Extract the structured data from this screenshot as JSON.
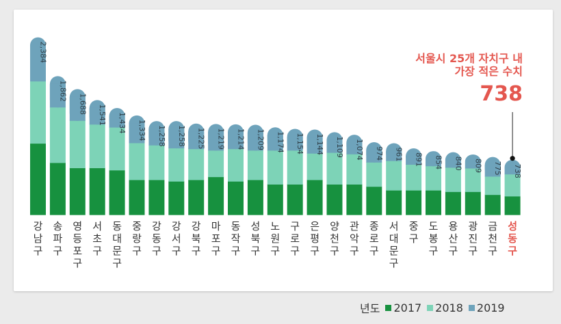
{
  "colors": {
    "y2017": "#17913f",
    "y2018": "#7dd3b7",
    "y2019": "#6ea3bb",
    "highlight": "#e4574f"
  },
  "annotation": {
    "line1": "서울시 25개 자치구 내",
    "line2": "가장 적은 수치",
    "value": "738"
  },
  "legend": {
    "title": "년도",
    "items": [
      {
        "label": "2017",
        "color": "#17913f"
      },
      {
        "label": "2018",
        "color": "#7dd3b7"
      },
      {
        "label": "2019",
        "color": "#6ea3bb"
      }
    ]
  },
  "chart_data": {
    "type": "bar",
    "stacked": true,
    "categories": [
      "강남구",
      "송파구",
      "영등포구",
      "서초구",
      "동대문구",
      "중랑구",
      "강동구",
      "강서구",
      "강북구",
      "마포구",
      "동작구",
      "성북구",
      "노원구",
      "구로구",
      "은평구",
      "양천구",
      "관악구",
      "종로구",
      "서대문구",
      "중구",
      "도봉구",
      "용산구",
      "광진구",
      "금천구",
      "성동구"
    ],
    "totals_2019": [
      "2,384",
      "1,862",
      "1,688",
      "1,541",
      "1,434",
      "1,334",
      "1,258",
      "1,258",
      "1,225",
      "1,219",
      "1,214",
      "1,209",
      "1,174",
      "1,154",
      "1,144",
      "1,109",
      "1,074",
      "974",
      "961",
      "891",
      "854",
      "840",
      "809",
      "775",
      "738"
    ],
    "series": [
      {
        "name": "2017",
        "values": [
          960,
          700,
          630,
          630,
          600,
          470,
          470,
          450,
          470,
          510,
          450,
          470,
          410,
          410,
          470,
          410,
          410,
          380,
          330,
          330,
          330,
          310,
          310,
          270,
          250
        ]
      },
      {
        "name": "2018",
        "values": [
          840,
          750,
          640,
          590,
          580,
          500,
          470,
          450,
          420,
          360,
          440,
          400,
          460,
          460,
          360,
          430,
          410,
          330,
          400,
          350,
          330,
          330,
          320,
          250,
          300
        ]
      },
      {
        "name": "2019",
        "values": [
          584,
          412,
          418,
          321,
          254,
          364,
          318,
          358,
          335,
          349,
          324,
          339,
          304,
          284,
          314,
          269,
          254,
          264,
          231,
          211,
          194,
          200,
          179,
          255,
          188
        ]
      }
    ],
    "highlight_category": "성동구",
    "ylim": [
      0,
      2500
    ]
  }
}
